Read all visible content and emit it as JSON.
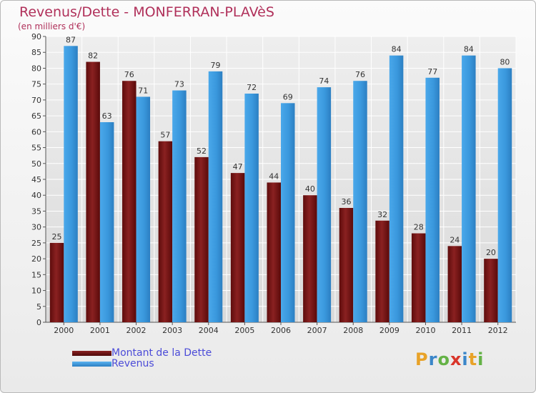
{
  "header": {
    "title": "Revenus/Dette - MONFERRAN-PLAVèS",
    "subtitle": "(en milliers d'€)"
  },
  "logo": {
    "letters": [
      "P",
      "r",
      "o",
      "x",
      "i",
      "t",
      "i"
    ],
    "colors": [
      "#e8a228",
      "#3a86c9",
      "#64b246",
      "#d9352a",
      "#3a86c9",
      "#e8a228",
      "#64b246"
    ]
  },
  "chart_data": {
    "type": "bar",
    "title": "Revenus/Dette - MONFERRAN-PLAVèS",
    "subtitle": "(en milliers d'€)",
    "categories": [
      "2000",
      "2001",
      "2002",
      "2003",
      "2004",
      "2005",
      "2006",
      "2007",
      "2008",
      "2009",
      "2010",
      "2011",
      "2012"
    ],
    "series": [
      {
        "name": "Montant de la Dette",
        "color": "#7a1616",
        "values": [
          25,
          82,
          76,
          57,
          52,
          47,
          44,
          40,
          36,
          32,
          28,
          24,
          20
        ]
      },
      {
        "name": "Revenus",
        "color": "#3d9be0",
        "values": [
          87,
          63,
          71,
          73,
          79,
          72,
          69,
          74,
          76,
          84,
          77,
          84,
          80
        ]
      }
    ],
    "ylim": [
      0,
      90
    ],
    "yticks": [
      0,
      5,
      10,
      15,
      20,
      25,
      30,
      35,
      40,
      45,
      50,
      55,
      60,
      65,
      70,
      75,
      80,
      85,
      90
    ],
    "grid": true,
    "legend_position": "bottom-left"
  }
}
